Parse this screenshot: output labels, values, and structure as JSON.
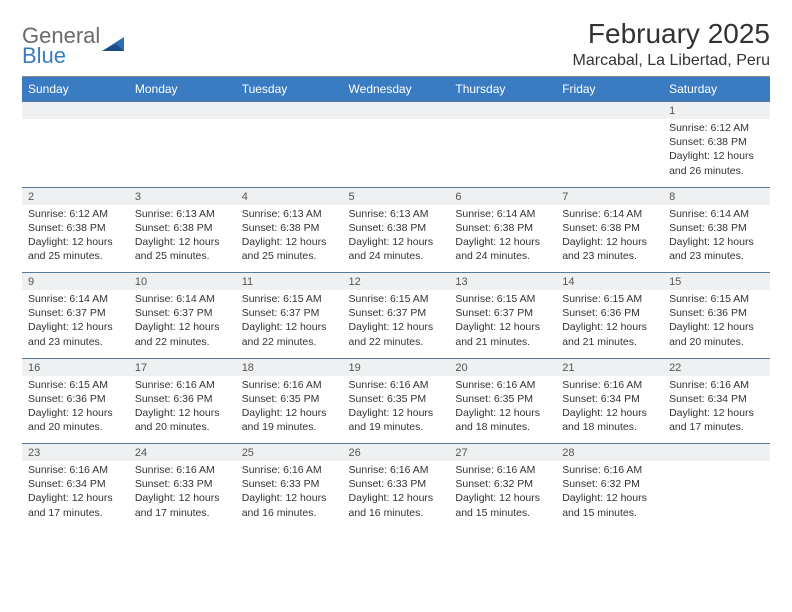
{
  "logo": {
    "word1": "General",
    "word2": "Blue"
  },
  "title": "February 2025",
  "location": "Marcabal, La Libertad, Peru",
  "colors": {
    "header_bg": "#3a7cc2",
    "header_text": "#ffffff",
    "daynum_bg": "#eef0f1",
    "row_border": "#5a7a9a",
    "logo_gray": "#6a6a6a",
    "logo_blue": "#3a7cc2"
  },
  "weekdays": [
    "Sunday",
    "Monday",
    "Tuesday",
    "Wednesday",
    "Thursday",
    "Friday",
    "Saturday"
  ],
  "weeks": [
    {
      "days": [
        {
          "num": "",
          "sunrise": "",
          "sunset": "",
          "daylight": ""
        },
        {
          "num": "",
          "sunrise": "",
          "sunset": "",
          "daylight": ""
        },
        {
          "num": "",
          "sunrise": "",
          "sunset": "",
          "daylight": ""
        },
        {
          "num": "",
          "sunrise": "",
          "sunset": "",
          "daylight": ""
        },
        {
          "num": "",
          "sunrise": "",
          "sunset": "",
          "daylight": ""
        },
        {
          "num": "",
          "sunrise": "",
          "sunset": "",
          "daylight": ""
        },
        {
          "num": "1",
          "sunrise": "Sunrise: 6:12 AM",
          "sunset": "Sunset: 6:38 PM",
          "daylight": "Daylight: 12 hours and 26 minutes."
        }
      ]
    },
    {
      "days": [
        {
          "num": "2",
          "sunrise": "Sunrise: 6:12 AM",
          "sunset": "Sunset: 6:38 PM",
          "daylight": "Daylight: 12 hours and 25 minutes."
        },
        {
          "num": "3",
          "sunrise": "Sunrise: 6:13 AM",
          "sunset": "Sunset: 6:38 PM",
          "daylight": "Daylight: 12 hours and 25 minutes."
        },
        {
          "num": "4",
          "sunrise": "Sunrise: 6:13 AM",
          "sunset": "Sunset: 6:38 PM",
          "daylight": "Daylight: 12 hours and 25 minutes."
        },
        {
          "num": "5",
          "sunrise": "Sunrise: 6:13 AM",
          "sunset": "Sunset: 6:38 PM",
          "daylight": "Daylight: 12 hours and 24 minutes."
        },
        {
          "num": "6",
          "sunrise": "Sunrise: 6:14 AM",
          "sunset": "Sunset: 6:38 PM",
          "daylight": "Daylight: 12 hours and 24 minutes."
        },
        {
          "num": "7",
          "sunrise": "Sunrise: 6:14 AM",
          "sunset": "Sunset: 6:38 PM",
          "daylight": "Daylight: 12 hours and 23 minutes."
        },
        {
          "num": "8",
          "sunrise": "Sunrise: 6:14 AM",
          "sunset": "Sunset: 6:38 PM",
          "daylight": "Daylight: 12 hours and 23 minutes."
        }
      ]
    },
    {
      "days": [
        {
          "num": "9",
          "sunrise": "Sunrise: 6:14 AM",
          "sunset": "Sunset: 6:37 PM",
          "daylight": "Daylight: 12 hours and 23 minutes."
        },
        {
          "num": "10",
          "sunrise": "Sunrise: 6:14 AM",
          "sunset": "Sunset: 6:37 PM",
          "daylight": "Daylight: 12 hours and 22 minutes."
        },
        {
          "num": "11",
          "sunrise": "Sunrise: 6:15 AM",
          "sunset": "Sunset: 6:37 PM",
          "daylight": "Daylight: 12 hours and 22 minutes."
        },
        {
          "num": "12",
          "sunrise": "Sunrise: 6:15 AM",
          "sunset": "Sunset: 6:37 PM",
          "daylight": "Daylight: 12 hours and 22 minutes."
        },
        {
          "num": "13",
          "sunrise": "Sunrise: 6:15 AM",
          "sunset": "Sunset: 6:37 PM",
          "daylight": "Daylight: 12 hours and 21 minutes."
        },
        {
          "num": "14",
          "sunrise": "Sunrise: 6:15 AM",
          "sunset": "Sunset: 6:36 PM",
          "daylight": "Daylight: 12 hours and 21 minutes."
        },
        {
          "num": "15",
          "sunrise": "Sunrise: 6:15 AM",
          "sunset": "Sunset: 6:36 PM",
          "daylight": "Daylight: 12 hours and 20 minutes."
        }
      ]
    },
    {
      "days": [
        {
          "num": "16",
          "sunrise": "Sunrise: 6:15 AM",
          "sunset": "Sunset: 6:36 PM",
          "daylight": "Daylight: 12 hours and 20 minutes."
        },
        {
          "num": "17",
          "sunrise": "Sunrise: 6:16 AM",
          "sunset": "Sunset: 6:36 PM",
          "daylight": "Daylight: 12 hours and 20 minutes."
        },
        {
          "num": "18",
          "sunrise": "Sunrise: 6:16 AM",
          "sunset": "Sunset: 6:35 PM",
          "daylight": "Daylight: 12 hours and 19 minutes."
        },
        {
          "num": "19",
          "sunrise": "Sunrise: 6:16 AM",
          "sunset": "Sunset: 6:35 PM",
          "daylight": "Daylight: 12 hours and 19 minutes."
        },
        {
          "num": "20",
          "sunrise": "Sunrise: 6:16 AM",
          "sunset": "Sunset: 6:35 PM",
          "daylight": "Daylight: 12 hours and 18 minutes."
        },
        {
          "num": "21",
          "sunrise": "Sunrise: 6:16 AM",
          "sunset": "Sunset: 6:34 PM",
          "daylight": "Daylight: 12 hours and 18 minutes."
        },
        {
          "num": "22",
          "sunrise": "Sunrise: 6:16 AM",
          "sunset": "Sunset: 6:34 PM",
          "daylight": "Daylight: 12 hours and 17 minutes."
        }
      ]
    },
    {
      "days": [
        {
          "num": "23",
          "sunrise": "Sunrise: 6:16 AM",
          "sunset": "Sunset: 6:34 PM",
          "daylight": "Daylight: 12 hours and 17 minutes."
        },
        {
          "num": "24",
          "sunrise": "Sunrise: 6:16 AM",
          "sunset": "Sunset: 6:33 PM",
          "daylight": "Daylight: 12 hours and 17 minutes."
        },
        {
          "num": "25",
          "sunrise": "Sunrise: 6:16 AM",
          "sunset": "Sunset: 6:33 PM",
          "daylight": "Daylight: 12 hours and 16 minutes."
        },
        {
          "num": "26",
          "sunrise": "Sunrise: 6:16 AM",
          "sunset": "Sunset: 6:33 PM",
          "daylight": "Daylight: 12 hours and 16 minutes."
        },
        {
          "num": "27",
          "sunrise": "Sunrise: 6:16 AM",
          "sunset": "Sunset: 6:32 PM",
          "daylight": "Daylight: 12 hours and 15 minutes."
        },
        {
          "num": "28",
          "sunrise": "Sunrise: 6:16 AM",
          "sunset": "Sunset: 6:32 PM",
          "daylight": "Daylight: 12 hours and 15 minutes."
        },
        {
          "num": "",
          "sunrise": "",
          "sunset": "",
          "daylight": ""
        }
      ]
    }
  ]
}
